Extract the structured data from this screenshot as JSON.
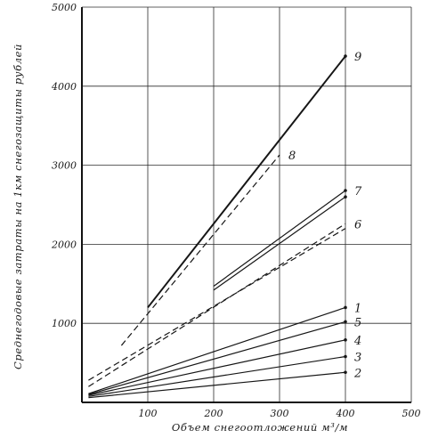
{
  "chart_data": {
    "type": "line",
    "title": "",
    "xlabel": "Объем снегоотложений м³/м",
    "ylabel": "Среднегодовые затраты на 1км снегозащиты рублей",
    "xlim": [
      0,
      500
    ],
    "ylim": [
      0,
      5000
    ],
    "x_ticks": [
      "100",
      "200",
      "300",
      "400",
      "500"
    ],
    "y_ticks": [
      "1000",
      "2000",
      "3000",
      "4000",
      "5000"
    ],
    "grid": true,
    "series": [
      {
        "name": "1",
        "style": "solid",
        "x": [
          10,
          400
        ],
        "y": [
          110,
          1200
        ]
      },
      {
        "name": "2",
        "style": "solid",
        "x": [
          10,
          400
        ],
        "y": [
          60,
          380
        ]
      },
      {
        "name": "3",
        "style": "solid",
        "x": [
          10,
          400
        ],
        "y": [
          75,
          580
        ]
      },
      {
        "name": "4",
        "style": "solid",
        "x": [
          10,
          400
        ],
        "y": [
          90,
          790
        ]
      },
      {
        "name": "5",
        "style": "solid",
        "x": [
          10,
          400
        ],
        "y": [
          100,
          1020
        ]
      },
      {
        "name": "6",
        "style": "dashed",
        "x": [
          10,
          400
        ],
        "y": [
          200,
          2260
        ]
      },
      {
        "name": "6",
        "style": "dashed",
        "x": [
          10,
          400
        ],
        "y": [
          280,
          2200
        ]
      },
      {
        "name": "7",
        "style": "solid",
        "x": [
          200,
          400
        ],
        "y": [
          1470,
          2680
        ]
      },
      {
        "name": "7",
        "style": "solid",
        "x": [
          200,
          400
        ],
        "y": [
          1420,
          2600
        ]
      },
      {
        "name": "8",
        "style": "dashed",
        "x": [
          60,
          300
        ],
        "y": [
          720,
          3130
        ]
      },
      {
        "name": "9",
        "style": "solid",
        "x": [
          100,
          400
        ],
        "y": [
          1200,
          4380
        ]
      }
    ]
  }
}
